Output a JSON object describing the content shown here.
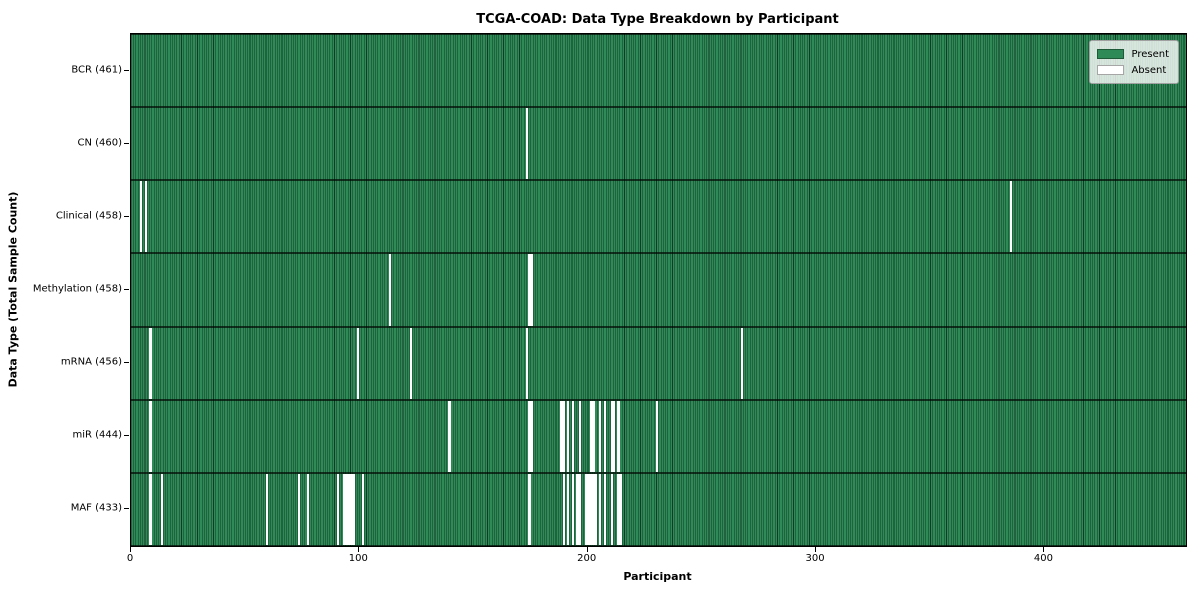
{
  "title": "TCGA-COAD: Data Type Breakdown by Participant",
  "legend": {
    "present_label": "Present",
    "absent_label": "Absent",
    "position": "upper right"
  },
  "colors": {
    "present": "#2e8b57",
    "present_edge": "#123a24",
    "absent": "#ffffff",
    "plot_border": "#000000"
  },
  "chart_data": {
    "type": "heatmap",
    "title": "TCGA-COAD: Data Type Breakdown by Participant",
    "xlabel": "Participant",
    "ylabel": "Data Type (Total Sample Count)",
    "x_ticks": [
      0,
      100,
      200,
      300,
      400
    ],
    "xlim": [
      0,
      462
    ],
    "n_participants": 461,
    "grid": false,
    "rows": [
      {
        "label": "BCR (461)",
        "data_type": "BCR",
        "present_count": 461,
        "absent_participants": []
      },
      {
        "label": "CN (460)",
        "data_type": "CN",
        "present_count": 460,
        "absent_participants": [
          173
        ]
      },
      {
        "label": "Clinical (458)",
        "data_type": "Clinical",
        "present_count": 458,
        "absent_participants": [
          4,
          6,
          385
        ]
      },
      {
        "label": "Methylation (458)",
        "data_type": "Methylation",
        "present_count": 458,
        "absent_participants": [
          113,
          174,
          175
        ]
      },
      {
        "label": "mRNA (456)",
        "data_type": "mRNA",
        "present_count": 456,
        "absent_participants": [
          8,
          99,
          122,
          173,
          267
        ]
      },
      {
        "label": "miR (444)",
        "data_type": "miR",
        "present_count": 444,
        "absent_participants": [
          8,
          139,
          174,
          175,
          188,
          189,
          191,
          193,
          196,
          201,
          202,
          205,
          207,
          210,
          211,
          213,
          230
        ]
      },
      {
        "label": "MAF (433)",
        "data_type": "MAF",
        "present_count": 433,
        "absent_participants": [
          8,
          13,
          59,
          73,
          77,
          90,
          93,
          94,
          95,
          96,
          97,
          101,
          174,
          189,
          191,
          193,
          195,
          196,
          199,
          200,
          201,
          202,
          203,
          205,
          207,
          210,
          213,
          214
        ]
      }
    ]
  }
}
